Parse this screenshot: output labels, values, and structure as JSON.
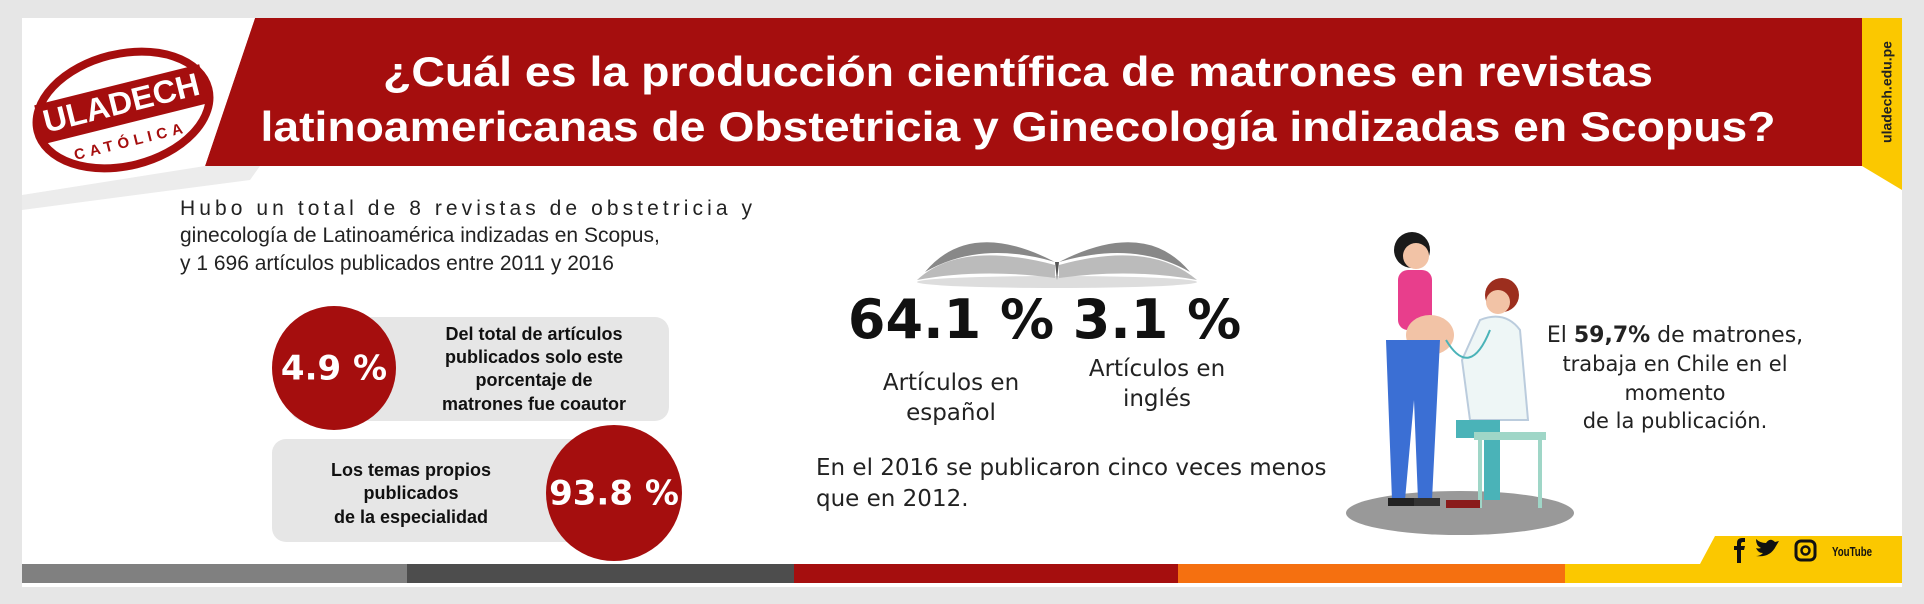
{
  "header": {
    "title": [
      "¿Cuál es la producción científica de matrones en revistas",
      "latinoamericanas de Obstetricia y Ginecología indizadas en Scopus?"
    ],
    "logo": {
      "name": "ULADECH",
      "subtitle": "CATÓLICA"
    },
    "website": "uladech.edu.pe"
  },
  "intro": [
    "Hubo un total de 8 revistas de obstetricia y",
    "ginecología de Latinoamérica indizadas en Scopus,",
    "y 1 696 artículos publicados entre 2011 y 2016"
  ],
  "stats": [
    {
      "value": "4.9 %",
      "text": [
        "Del total de artículos",
        "publicados solo este",
        "porcentaje de",
        "matrones fue coautor"
      ]
    },
    {
      "value": "93.8 %",
      "text": [
        "Los temas propios",
        "publicados",
        "de la especialidad"
      ]
    }
  ],
  "languages": [
    {
      "value": "64.1 %",
      "text": [
        "Artículos en",
        "español"
      ]
    },
    {
      "value": "3.1 %",
      "text": [
        "Artículos en",
        "inglés"
      ]
    }
  ],
  "comparison": [
    "En el 2016 se publicaron cinco veces menos",
    "que en 2012."
  ],
  "chile": {
    "before": "El ",
    "highlight": "59,7%",
    "after": " de matrones,",
    "lines": [
      "trabaja en Chile en el",
      "momento",
      "de la publicación."
    ]
  },
  "social": {
    "youtube": "YouTube"
  }
}
